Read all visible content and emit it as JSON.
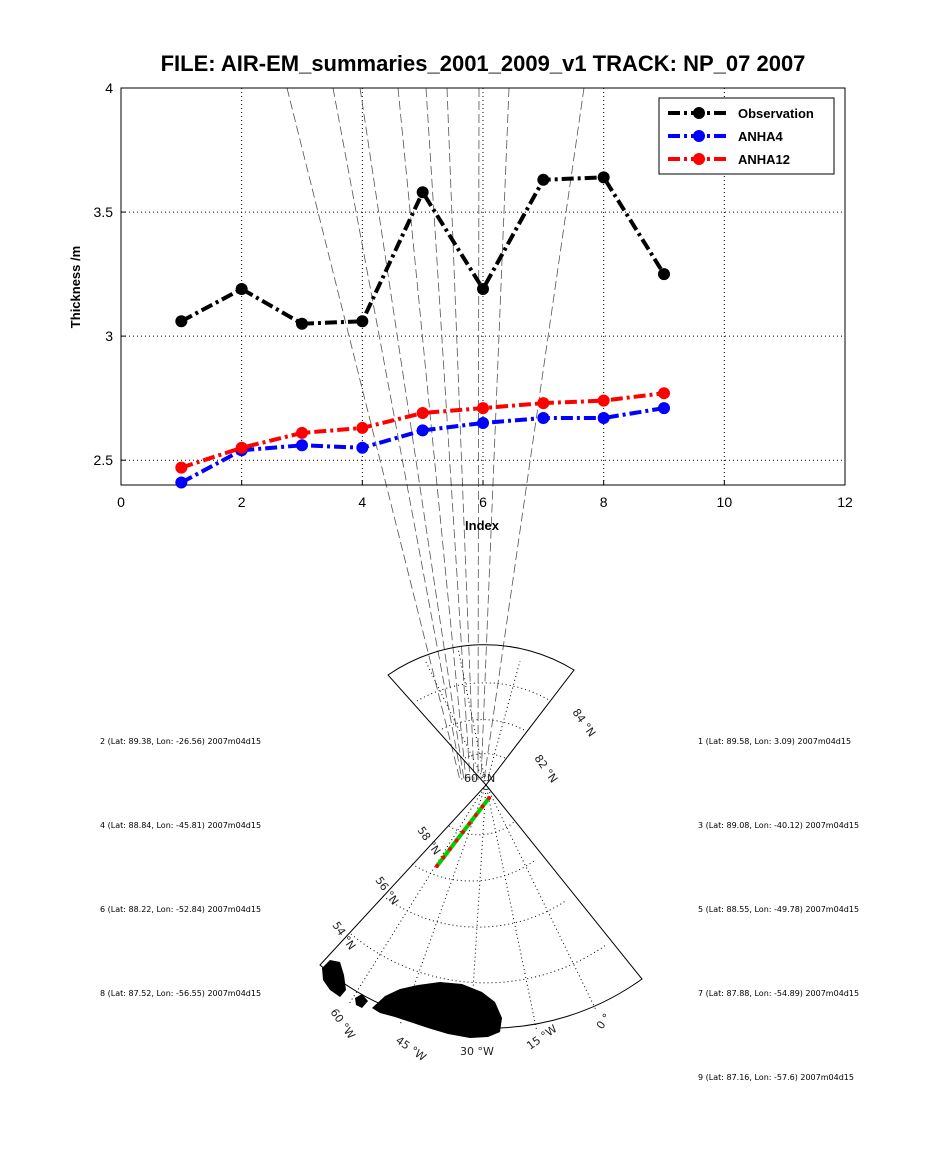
{
  "chart_data": {
    "type": "line",
    "title": "FILE: AIR-EM_summaries_2001_2009_v1 TRACK: NP_07 2007",
    "xlabel": "Index",
    "ylabel": "Thickness /m",
    "xlim": [
      0,
      12
    ],
    "ylim": [
      2.4,
      4
    ],
    "xticks": [
      "0",
      "2",
      "4",
      "6",
      "8",
      "10",
      "12"
    ],
    "yticks": [
      "2.5",
      "3",
      "3.5",
      "4"
    ],
    "grid": true,
    "legend_position": "top-right",
    "x": [
      1,
      2,
      3,
      4,
      5,
      6,
      7,
      8,
      9
    ],
    "series": [
      {
        "name": "Observation",
        "color": "#000000",
        "values": [
          3.06,
          3.19,
          3.05,
          3.06,
          3.58,
          3.19,
          3.63,
          3.64,
          3.25
        ]
      },
      {
        "name": "ANHA4",
        "color": "#0000ff",
        "values": [
          2.41,
          2.54,
          2.56,
          2.55,
          2.62,
          2.65,
          2.67,
          2.67,
          2.71
        ]
      },
      {
        "name": "ANHA12",
        "color": "#ff0000",
        "values": [
          2.47,
          2.55,
          2.61,
          2.63,
          2.69,
          2.71,
          2.73,
          2.74,
          2.77
        ]
      }
    ]
  },
  "map": {
    "lat_labels": [
      "84 °N",
      "82 °N",
      "60 °N",
      "58 °N",
      "56 °N",
      "54 °N"
    ],
    "lon_labels": [
      "60 °W",
      "45 °W",
      "30 °W",
      "15 °W",
      "0 °"
    ],
    "track_color": "#00cc00",
    "track_point_color": "#ff0000",
    "land_color": "#000000"
  },
  "points": [
    {
      "label": "1 (Lat: 89.58, Lon: 3.09) 2007m04d15",
      "lat": 89.58,
      "lon": 3.09
    },
    {
      "label": "2 (Lat: 89.38, Lon: -26.56) 2007m04d15",
      "lat": 89.38,
      "lon": -26.56
    },
    {
      "label": "3 (Lat: 89.08, Lon: -40.12) 2007m04d15",
      "lat": 89.08,
      "lon": -40.12
    },
    {
      "label": "4 (Lat: 88.84, Lon: -45.81) 2007m04d15",
      "lat": 88.84,
      "lon": -45.81
    },
    {
      "label": "5 (Lat: 88.55, Lon: -49.78) 2007m04d15",
      "lat": 88.55,
      "lon": -49.78
    },
    {
      "label": "6 (Lat: 88.22, Lon: -52.84) 2007m04d15",
      "lat": 88.22,
      "lon": -52.84
    },
    {
      "label": "7 (Lat: 87.88, Lon: -54.89) 2007m04d15",
      "lat": 87.88,
      "lon": -54.89
    },
    {
      "label": "8 (Lat: 87.52, Lon: -56.55) 2007m04d15",
      "lat": 87.52,
      "lon": -56.55
    },
    {
      "label": "9 (Lat: 87.16, Lon: -57.6) 2007m04d15",
      "lat": 87.16,
      "lon": -57.6
    }
  ]
}
